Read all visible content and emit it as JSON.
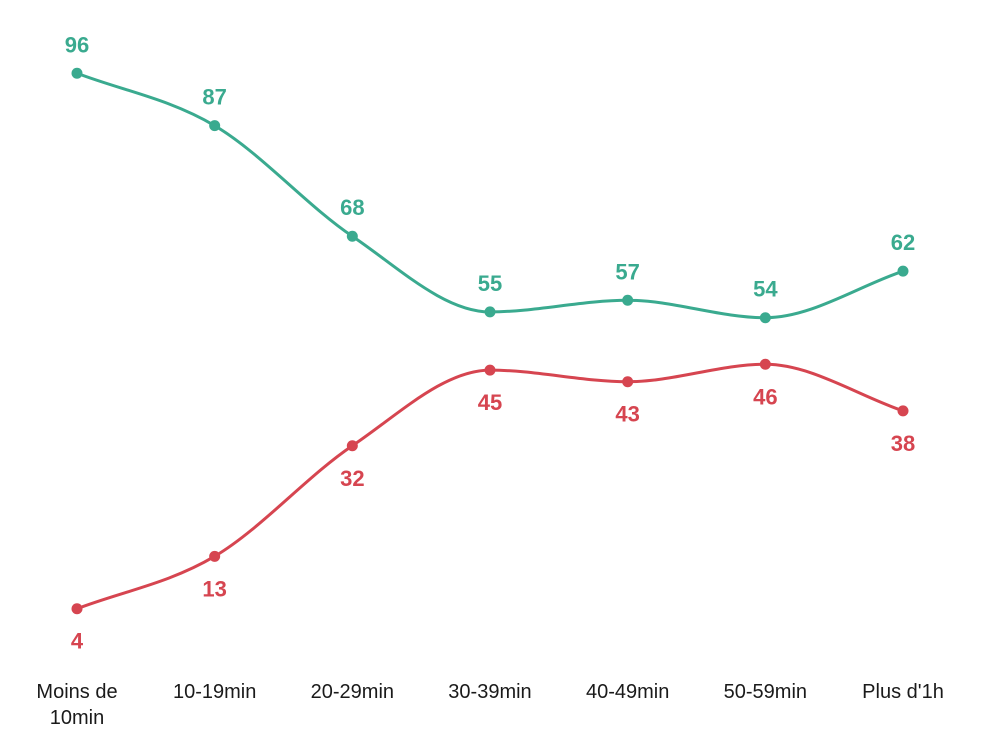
{
  "chart_data": {
    "type": "line",
    "categories": [
      [
        "Moins de",
        "10min"
      ],
      [
        "10-19min"
      ],
      [
        "20-29min"
      ],
      [
        "30-39min"
      ],
      [
        "40-49min"
      ],
      [
        "50-59min"
      ],
      [
        "Plus d'1h"
      ]
    ],
    "ylim": [
      0,
      100
    ],
    "grid": false,
    "series": [
      {
        "color": "#3aaa8f",
        "values": [
          96,
          87,
          68,
          55,
          57,
          54,
          62
        ],
        "label_position": "above"
      },
      {
        "color": "#d64550",
        "values": [
          4,
          13,
          32,
          45,
          43,
          46,
          38
        ],
        "label_position": "below"
      }
    ]
  }
}
